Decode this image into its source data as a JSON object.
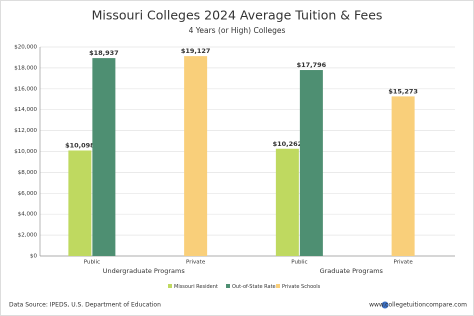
{
  "chart_data": {
    "type": "grouped-bar",
    "title": "Missouri Colleges 2024 Average Tuition & Fees",
    "subtitle": "4 Years (or High)  Colleges",
    "categories": [
      "Public",
      "Private",
      "Public",
      "Private"
    ],
    "groups": [
      "Undergraduate Programs",
      "Graduate Programs"
    ],
    "series": [
      {
        "name": "Missouri Resident",
        "color": "#bfd960",
        "values": [
          10098,
          null,
          10262,
          null
        ],
        "value_labels": [
          "$10,098",
          null,
          "$10,262",
          null
        ]
      },
      {
        "name": "Out-of-State Rate",
        "color": "#4e8f72",
        "values": [
          18937,
          null,
          17796,
          null
        ],
        "value_labels": [
          "$18,937",
          null,
          "$17,796",
          null
        ]
      },
      {
        "name": "Private Schools",
        "color": "#f9cf7a",
        "values": [
          null,
          19127,
          null,
          15273
        ],
        "value_labels": [
          null,
          "$19,127",
          null,
          "$15,273"
        ]
      }
    ],
    "ylim": [
      0,
      20000
    ],
    "yticks": [
      {
        "value": 0,
        "label": "$0"
      },
      {
        "value": 2000,
        "label": "$2,000"
      },
      {
        "value": 4000,
        "label": "$4,000"
      },
      {
        "value": 6000,
        "label": "$6,000"
      },
      {
        "value": 8000,
        "label": "$8,000"
      },
      {
        "value": 10000,
        "label": "$10,000"
      },
      {
        "value": 12000,
        "label": "$12,000"
      },
      {
        "value": 14000,
        "label": "$14,000"
      },
      {
        "value": 16000,
        "label": "$16,000"
      },
      {
        "value": 18000,
        "label": "$18,000"
      },
      {
        "value": 20000,
        "label": "$20,000"
      }
    ],
    "grid": true
  },
  "footer": {
    "source": "Data Source: IPEDS, U.S. Department of Education",
    "website": "www.collegetuitioncompare.com"
  }
}
